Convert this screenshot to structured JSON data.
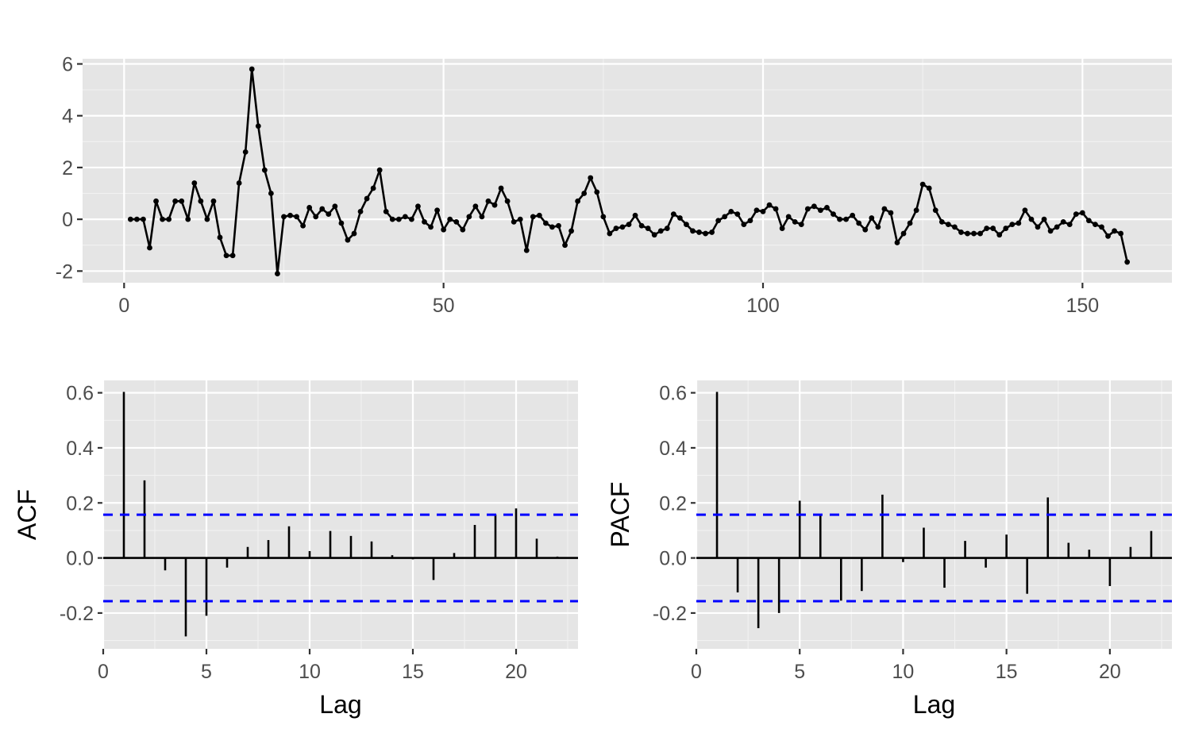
{
  "chart_data": [
    {
      "type": "line",
      "title": "",
      "xlabel": "",
      "ylabel": "",
      "xlim": [
        -6.5,
        164
      ],
      "ylim": [
        -2.45,
        6.2
      ],
      "x_ticks": [
        0,
        50,
        100,
        150
      ],
      "x_tick_labels": [
        "0",
        "50",
        "100",
        "150"
      ],
      "y_ticks": [
        -2,
        0,
        2,
        4,
        6
      ],
      "y_tick_labels": [
        "-2",
        "0",
        "2",
        "4",
        "6"
      ],
      "grid": true,
      "markers": true,
      "x_start": 1,
      "values": [
        0.0,
        0.0,
        0.0,
        -1.1,
        0.7,
        0.0,
        0.0,
        0.7,
        0.7,
        0.0,
        1.4,
        0.7,
        0.0,
        0.7,
        -0.7,
        -1.4,
        -1.4,
        1.4,
        2.6,
        5.8,
        3.6,
        1.9,
        1.0,
        -2.1,
        0.1,
        0.15,
        0.1,
        -0.25,
        0.45,
        0.1,
        0.4,
        0.2,
        0.5,
        -0.15,
        -0.8,
        -0.55,
        0.3,
        0.8,
        1.2,
        1.9,
        0.3,
        0.0,
        0.0,
        0.1,
        0.0,
        0.5,
        -0.1,
        -0.3,
        0.35,
        -0.4,
        0.0,
        -0.1,
        -0.4,
        0.1,
        0.5,
        0.1,
        0.7,
        0.55,
        1.2,
        0.7,
        -0.1,
        0.0,
        -1.2,
        0.1,
        0.15,
        -0.15,
        -0.3,
        -0.25,
        -1.0,
        -0.45,
        0.7,
        1.0,
        1.6,
        1.05,
        0.1,
        -0.55,
        -0.35,
        -0.3,
        -0.2,
        0.15,
        -0.25,
        -0.35,
        -0.6,
        -0.45,
        -0.35,
        0.2,
        0.05,
        -0.2,
        -0.45,
        -0.5,
        -0.55,
        -0.5,
        -0.05,
        0.1,
        0.3,
        0.2,
        -0.2,
        -0.05,
        0.35,
        0.3,
        0.55,
        0.4,
        -0.35,
        0.1,
        -0.1,
        -0.2,
        0.4,
        0.5,
        0.35,
        0.45,
        0.2,
        0.0,
        0.0,
        0.15,
        -0.15,
        -0.4,
        0.05,
        -0.3,
        0.4,
        0.25,
        -0.9,
        -0.55,
        -0.15,
        0.35,
        1.35,
        1.2,
        0.35,
        -0.1,
        -0.2,
        -0.3,
        -0.5,
        -0.55,
        -0.55,
        -0.55,
        -0.35,
        -0.35,
        -0.6,
        -0.35,
        -0.2,
        -0.15,
        0.35,
        0.0,
        -0.3,
        0.0,
        -0.45,
        -0.3,
        -0.1,
        -0.2,
        0.2,
        0.25,
        -0.05,
        -0.2,
        -0.3,
        -0.65,
        -0.45,
        -0.55,
        -1.65
      ]
    },
    {
      "type": "bar",
      "title": "",
      "xlabel": "Lag",
      "ylabel": "ACF",
      "xlim": [
        0,
        23
      ],
      "ylim": [
        -0.33,
        0.645
      ],
      "x_ticks": [
        0,
        5,
        10,
        15,
        20
      ],
      "x_tick_labels": [
        "0",
        "5",
        "10",
        "15",
        "20"
      ],
      "y_ticks": [
        -0.2,
        0.0,
        0.2,
        0.4,
        0.6
      ],
      "y_tick_labels": [
        "-0.2",
        "0.0",
        "0.2",
        "0.4",
        "0.6"
      ],
      "grid": true,
      "ci": 0.157,
      "lags": [
        1,
        2,
        3,
        4,
        5,
        6,
        7,
        8,
        9,
        10,
        11,
        12,
        13,
        14,
        15,
        16,
        17,
        18,
        19,
        20,
        21,
        22
      ],
      "values": [
        0.603,
        0.282,
        -0.045,
        -0.285,
        -0.21,
        -0.035,
        0.04,
        0.065,
        0.115,
        0.025,
        0.098,
        0.08,
        0.06,
        0.01,
        -0.005,
        -0.08,
        0.018,
        0.12,
        0.158,
        0.18,
        0.07,
        0.005
      ]
    },
    {
      "type": "bar",
      "title": "",
      "xlabel": "Lag",
      "ylabel": "PACF",
      "xlim": [
        0,
        23
      ],
      "ylim": [
        -0.33,
        0.645
      ],
      "x_ticks": [
        0,
        5,
        10,
        15,
        20
      ],
      "x_tick_labels": [
        "0",
        "5",
        "10",
        "15",
        "20"
      ],
      "y_ticks": [
        -0.2,
        0.0,
        0.2,
        0.4,
        0.6
      ],
      "y_tick_labels": [
        "-0.2",
        "0.0",
        "0.2",
        "0.4",
        "0.6"
      ],
      "grid": true,
      "ci": 0.157,
      "lags": [
        1,
        2,
        3,
        4,
        5,
        6,
        7,
        8,
        9,
        10,
        11,
        12,
        13,
        14,
        15,
        16,
        17,
        18,
        19,
        20,
        21,
        22
      ],
      "values": [
        0.603,
        -0.125,
        -0.255,
        -0.2,
        0.208,
        0.155,
        -0.155,
        -0.12,
        0.23,
        -0.015,
        0.11,
        -0.108,
        0.062,
        -0.035,
        0.085,
        -0.13,
        0.22,
        0.055,
        0.03,
        -0.102,
        0.04,
        0.098
      ]
    }
  ],
  "colors": {
    "panel": "#e5e5e5",
    "grid": "#ffffff",
    "series": "#000000",
    "ci": "#0000ff"
  }
}
